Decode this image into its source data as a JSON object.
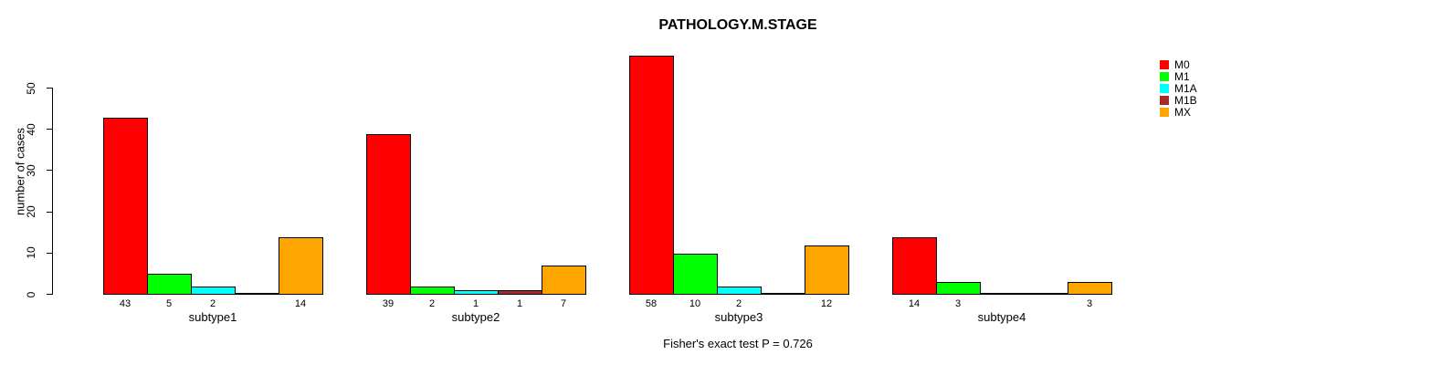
{
  "title": "PATHOLOGY.M.STAGE",
  "annotation": "Fisher's exact test P = 0.726",
  "axis": {
    "ylabel": "number of cases",
    "yticks": [
      "0",
      "10",
      "20",
      "30",
      "40",
      "50"
    ],
    "axis_color": "#000000"
  },
  "chart_data": {
    "type": "bar",
    "title": "PATHOLOGY.M.STAGE",
    "xlabel": "",
    "ylabel": "number of cases",
    "categories": [
      "subtype1",
      "subtype2",
      "subtype3",
      "subtype4"
    ],
    "series": [
      {
        "name": "M0",
        "color": "#FF0000",
        "values": [
          43,
          39,
          58,
          14
        ]
      },
      {
        "name": "M1",
        "color": "#00FF00",
        "values": [
          5,
          2,
          10,
          3
        ]
      },
      {
        "name": "M1A",
        "color": "#00FFFF",
        "values": [
          2,
          1,
          2,
          0
        ]
      },
      {
        "name": "M1B",
        "color": "#A52A2A",
        "values": [
          0,
          1,
          0,
          0
        ]
      },
      {
        "name": "MX",
        "color": "#FFA500",
        "values": [
          14,
          7,
          12,
          3
        ]
      }
    ],
    "yticks": [
      0,
      10,
      20,
      30,
      40,
      50
    ],
    "axis_range": [
      0,
      50
    ],
    "grid": false,
    "legend_position": "right",
    "bar_border_color": "#000000",
    "values_shown_below_bars": true,
    "zero_bars_hidden_labels": true,
    "annotation": "Fisher's exact test P = 0.726"
  },
  "legend": {
    "items": [
      {
        "label": "M0",
        "color": "#FF0000"
      },
      {
        "label": "M1",
        "color": "#00FF00"
      },
      {
        "label": "M1A",
        "color": "#00FFFF"
      },
      {
        "label": "M1B",
        "color": "#A52A2A"
      },
      {
        "label": "MX",
        "color": "#FFA500"
      }
    ]
  }
}
